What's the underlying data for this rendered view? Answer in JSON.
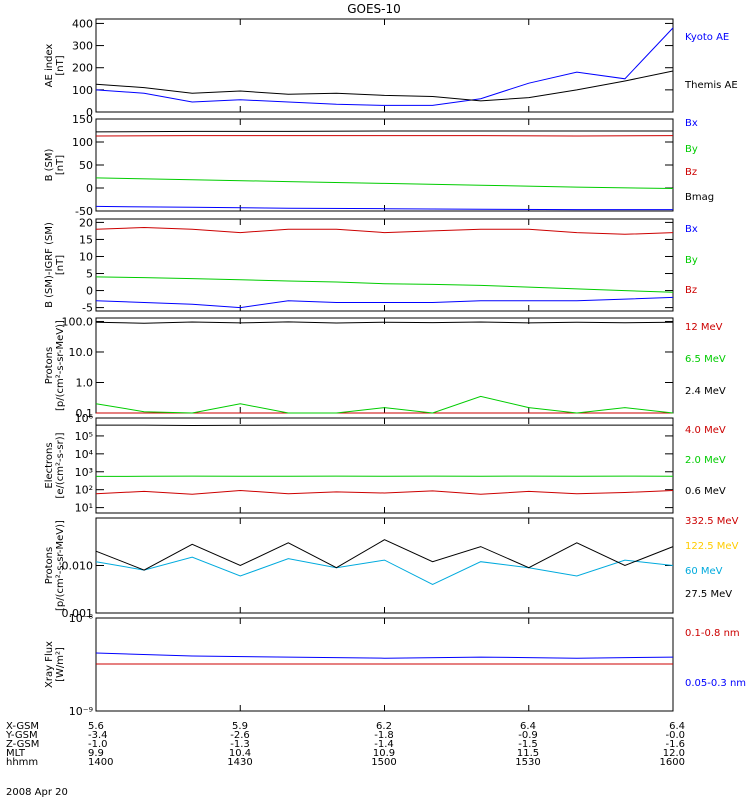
{
  "page": {
    "title": "GOES-10",
    "date": "2008 Apr 20"
  },
  "colors": {
    "black": "#000000",
    "blue": "#0000ff",
    "green": "#00cc00",
    "red": "#cc0000",
    "yellow": "#ffcc00",
    "cyan": "#00aadd"
  },
  "axis_table": {
    "labels": [
      "X-GSM",
      "Y-GSM",
      "Z-GSM",
      "MLT",
      "hhmm"
    ],
    "columns": [
      {
        "values": [
          "5.6",
          "-3.4",
          "-1.0",
          "9.9",
          "1400"
        ]
      },
      {
        "values": [
          "5.9",
          "-2.6",
          "-1.3",
          "10.4",
          "1430"
        ]
      },
      {
        "values": [
          "6.2",
          "-1.8",
          "-1.4",
          "10.9",
          "1500"
        ]
      },
      {
        "values": [
          "6.4",
          "-0.9",
          "-1.5",
          "11.5",
          "1530"
        ]
      },
      {
        "values": [
          "6.4",
          "-0.0",
          "-1.6",
          "12.0",
          "1600"
        ]
      }
    ]
  },
  "chart_data": [
    {
      "type": "line",
      "ylabel": [
        "AE index",
        "[nT]"
      ],
      "ylim": [
        0,
        420
      ],
      "yscale": "linear",
      "ticks": [
        "400",
        "300",
        "200",
        "100",
        "0"
      ],
      "tick_values": [
        400,
        300,
        200,
        100,
        0
      ],
      "x": [
        0,
        10,
        20,
        30,
        40,
        50,
        60,
        70,
        80,
        90,
        100,
        110,
        120
      ],
      "series": [
        {
          "name": "Kyoto AE",
          "color": "blue",
          "values": [
            100,
            85,
            45,
            55,
            45,
            35,
            30,
            30,
            60,
            130,
            180,
            150,
            380
          ]
        },
        {
          "name": "Themis AE",
          "color": "black",
          "values": [
            125,
            110,
            85,
            95,
            80,
            85,
            75,
            70,
            50,
            65,
            100,
            140,
            185
          ]
        }
      ]
    },
    {
      "type": "line",
      "ylabel": [
        "B (SM)",
        "[nT]"
      ],
      "ylim": [
        -50,
        150
      ],
      "yscale": "linear",
      "ticks": [
        "150",
        "100",
        "50",
        "0",
        "-50"
      ],
      "tick_values": [
        150,
        100,
        50,
        0,
        -50
      ],
      "x": [
        0,
        20,
        40,
        60,
        80,
        100,
        120
      ],
      "series": [
        {
          "name": "Bx",
          "color": "blue",
          "values": [
            -40,
            -42,
            -44,
            -45,
            -46,
            -47,
            -47
          ]
        },
        {
          "name": "By",
          "color": "green",
          "values": [
            22,
            18,
            14,
            10,
            6,
            2,
            -1
          ]
        },
        {
          "name": "Bz",
          "color": "red",
          "values": [
            113,
            114,
            114,
            114,
            114,
            113,
            114
          ]
        },
        {
          "name": "Bmag",
          "color": "black",
          "values": [
            122,
            123,
            123,
            124,
            124,
            124,
            124
          ]
        }
      ]
    },
    {
      "type": "line",
      "ylabel": [
        "B (SM)-IGRF (SM)",
        "[nT]"
      ],
      "ylim": [
        -6,
        21
      ],
      "yscale": "linear",
      "ticks": [
        "20",
        "15",
        "10",
        "5",
        "0",
        "-5"
      ],
      "tick_values": [
        20,
        15,
        10,
        5,
        0,
        -5
      ],
      "x": [
        0,
        10,
        20,
        30,
        40,
        50,
        60,
        70,
        80,
        90,
        100,
        110,
        120
      ],
      "series": [
        {
          "name": "Bx",
          "color": "blue",
          "values": [
            -3,
            -3.5,
            -4,
            -5,
            -3,
            -3.5,
            -3.5,
            -3.5,
            -3,
            -3,
            -3,
            -2.5,
            -2
          ]
        },
        {
          "name": "By",
          "color": "green",
          "values": [
            4,
            3.8,
            3.5,
            3.2,
            2.8,
            2.5,
            2,
            1.8,
            1.5,
            1,
            0.5,
            0,
            -0.5
          ]
        },
        {
          "name": "Bz",
          "color": "red",
          "values": [
            18,
            18.5,
            18,
            17,
            18,
            18,
            17,
            17.5,
            18,
            18,
            17,
            16.5,
            17
          ]
        }
      ]
    },
    {
      "type": "line",
      "ylabel": [
        "Protons",
        "[p/(cm²-s-sr-MeV)]"
      ],
      "ylim": [
        0.1,
        130
      ],
      "yscale": "log",
      "ticks": [
        "100.0",
        "10.0",
        "1.0",
        "0.1"
      ],
      "tick_values": [
        100,
        10,
        1,
        0.1
      ],
      "x": [
        0,
        10,
        20,
        30,
        40,
        50,
        60,
        70,
        80,
        90,
        100,
        110,
        120
      ],
      "series": [
        {
          "name": "12 MeV",
          "color": "red",
          "values": [
            0.1,
            0.1,
            0.1,
            0.1,
            0.1,
            0.1,
            0.1,
            0.1,
            0.1,
            0.1,
            0.1,
            0.1,
            0.1
          ]
        },
        {
          "name": "6.5 MeV",
          "color": "green",
          "values": [
            0.2,
            0.11,
            0.1,
            0.2,
            0.1,
            0.1,
            0.15,
            0.1,
            0.35,
            0.15,
            0.1,
            0.15,
            0.1
          ]
        },
        {
          "name": "2.4 MeV",
          "color": "black",
          "values": [
            95,
            88,
            96,
            90,
            97,
            89,
            95,
            92,
            96,
            90,
            94,
            91,
            95
          ]
        }
      ]
    },
    {
      "type": "line",
      "ylabel": [
        "Electrons",
        "[e/(cm²-s-sr)]"
      ],
      "ylim": [
        5,
        1000000
      ],
      "yscale": "log",
      "ticks": [
        "10⁶",
        "10⁵",
        "10⁴",
        "10³",
        "10²",
        "10¹"
      ],
      "tick_values": [
        1000000,
        100000,
        10000,
        1000,
        100,
        10
      ],
      "x": [
        0,
        10,
        20,
        30,
        40,
        50,
        60,
        70,
        80,
        90,
        100,
        110,
        120
      ],
      "series": [
        {
          "name": "4.0 MeV",
          "color": "red",
          "values": [
            60,
            80,
            55,
            90,
            60,
            75,
            65,
            85,
            55,
            80,
            60,
            70,
            90
          ]
        },
        {
          "name": "2.0 MeV",
          "color": "green",
          "values": [
            550,
            560,
            570,
            560,
            560,
            570,
            560,
            570,
            560,
            570,
            560,
            570,
            560
          ]
        },
        {
          "name": "0.6 MeV",
          "color": "black",
          "values": [
            400000,
            400000,
            380000,
            390000,
            400000,
            400000,
            400000,
            400000,
            400000,
            400000,
            400000,
            400000,
            400000
          ]
        }
      ]
    },
    {
      "type": "line",
      "ylabel": [
        "Protons",
        "[p/(cm²-s-sr-MeV)]"
      ],
      "ylim": [
        0.001,
        0.1
      ],
      "yscale": "log",
      "ticks": [
        "0.010",
        "0.001"
      ],
      "tick_values": [
        0.01,
        0.001
      ],
      "x": [
        0,
        10,
        20,
        30,
        40,
        50,
        60,
        70,
        80,
        90,
        100,
        110,
        120
      ],
      "series": [
        {
          "name": "332.5 MeV",
          "color": "red",
          "values": [
            null,
            null,
            null,
            null,
            null,
            null,
            null,
            null,
            null,
            null,
            null,
            null,
            null
          ]
        },
        {
          "name": "122.5 MeV",
          "color": "yellow",
          "values": [
            null,
            null,
            null,
            null,
            null,
            null,
            null,
            null,
            null,
            null,
            null,
            null,
            null
          ]
        },
        {
          "name": "60 MeV",
          "color": "cyan",
          "values": [
            0.012,
            0.008,
            0.015,
            0.006,
            0.014,
            0.009,
            0.013,
            0.004,
            0.012,
            0.009,
            0.006,
            0.013,
            0.01
          ]
        },
        {
          "name": "27.5 MeV",
          "color": "black",
          "values": [
            0.02,
            0.008,
            0.028,
            0.01,
            0.03,
            0.009,
            0.035,
            0.012,
            0.025,
            0.009,
            0.03,
            0.01,
            0.025
          ]
        }
      ]
    },
    {
      "type": "line",
      "ylabel": [
        "Xray Flux",
        "[W/m²]"
      ],
      "ylim": [
        1e-09,
        1e-08
      ],
      "yscale": "log",
      "ticks": [
        "10⁻⁸",
        "10⁻⁹"
      ],
      "tick_values": [
        1e-08,
        1e-09
      ],
      "x": [
        0,
        20,
        40,
        60,
        80,
        100,
        120
      ],
      "series": [
        {
          "name": "0.1-0.8 nm",
          "color": "red",
          "values": [
            3.2e-09,
            3.2e-09,
            3.2e-09,
            3.2e-09,
            3.2e-09,
            3.2e-09,
            3.2e-09
          ]
        },
        {
          "name": "0.05-0.3 nm",
          "color": "blue",
          "values": [
            4.2e-09,
            3.9e-09,
            3.8e-09,
            3.7e-09,
            3.8e-09,
            3.7e-09,
            3.8e-09
          ]
        }
      ]
    }
  ]
}
